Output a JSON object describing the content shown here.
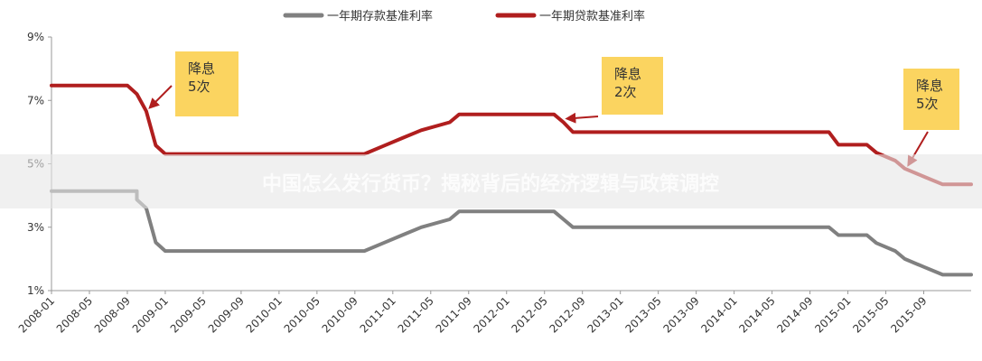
{
  "chart_data": {
    "type": "line",
    "title": "",
    "xlabel": "",
    "ylabel": "",
    "ylim": [
      1,
      9
    ],
    "yticks": [
      "1%",
      "3%",
      "5%",
      "7%",
      "9%"
    ],
    "xlim": [
      "2008-01",
      "2016-02"
    ],
    "xticks": [
      "2008-01",
      "2008-05",
      "2008-09",
      "2009-01",
      "2009-05",
      "2009-09",
      "2010-01",
      "2010-05",
      "2010-09",
      "2011-01",
      "2011-05",
      "2011-09",
      "2012-01",
      "2012-05",
      "2012-09",
      "2013-01",
      "2013-05",
      "2013-09",
      "2014-01",
      "2014-05",
      "2014-09",
      "2015-01",
      "2015-05",
      "2015-09"
    ],
    "legend_position": "top",
    "series": [
      {
        "name": "一年期存款基准利率",
        "color": "#808080",
        "points": [
          [
            "2008-01",
            4.14
          ],
          [
            "2008-10",
            4.14
          ],
          [
            "2008-10",
            3.87
          ],
          [
            "2008-11",
            3.6
          ],
          [
            "2008-12",
            2.52
          ],
          [
            "2009-01",
            2.25
          ],
          [
            "2010-10",
            2.25
          ],
          [
            "2010-12",
            2.5
          ],
          [
            "2011-02",
            2.75
          ],
          [
            "2011-04",
            3.0
          ],
          [
            "2011-07",
            3.25
          ],
          [
            "2011-08",
            3.5
          ],
          [
            "2012-06",
            3.5
          ],
          [
            "2012-07",
            3.25
          ],
          [
            "2012-08",
            3.0
          ],
          [
            "2014-11",
            3.0
          ],
          [
            "2014-12",
            2.75
          ],
          [
            "2015-03",
            2.75
          ],
          [
            "2015-04",
            2.5
          ],
          [
            "2015-06",
            2.25
          ],
          [
            "2015-07",
            2.0
          ],
          [
            "2015-09",
            1.75
          ],
          [
            "2015-11",
            1.5
          ],
          [
            "2016-02",
            1.5
          ]
        ]
      },
      {
        "name": "一年期贷款基准利率",
        "color": "#b01e1e",
        "points": [
          [
            "2008-01",
            7.47
          ],
          [
            "2008-09",
            7.47
          ],
          [
            "2008-10",
            7.2
          ],
          [
            "2008-11",
            6.66
          ],
          [
            "2008-12",
            5.58
          ],
          [
            "2009-01",
            5.31
          ],
          [
            "2010-10",
            5.31
          ],
          [
            "2010-12",
            5.56
          ],
          [
            "2011-02",
            5.81
          ],
          [
            "2011-04",
            6.06
          ],
          [
            "2011-07",
            6.31
          ],
          [
            "2011-08",
            6.56
          ],
          [
            "2012-06",
            6.56
          ],
          [
            "2012-07",
            6.31
          ],
          [
            "2012-08",
            6.0
          ],
          [
            "2014-11",
            6.0
          ],
          [
            "2014-12",
            5.6
          ],
          [
            "2015-03",
            5.6
          ],
          [
            "2015-04",
            5.35
          ],
          [
            "2015-06",
            5.1
          ],
          [
            "2015-07",
            4.85
          ],
          [
            "2015-09",
            4.6
          ],
          [
            "2015-11",
            4.35
          ],
          [
            "2016-02",
            4.35
          ]
        ]
      }
    ],
    "annotations": [
      {
        "lines": [
          "降息",
          "5次"
        ],
        "box_color": "#fbd460",
        "target": [
          "2008-11",
          6.66
        ]
      },
      {
        "lines": [
          "降息",
          "2次"
        ],
        "box_color": "#fbd460",
        "target": [
          "2012-07",
          6.31
        ]
      },
      {
        "lines": [
          "降息",
          "5次"
        ],
        "box_color": "#fbd460",
        "target": [
          "2015-07",
          4.85
        ]
      }
    ],
    "overlay_banner": {
      "text": "中国怎么发行货币？揭秘背后的经济逻辑与政策调控",
      "color": "#e6e6e6"
    }
  }
}
